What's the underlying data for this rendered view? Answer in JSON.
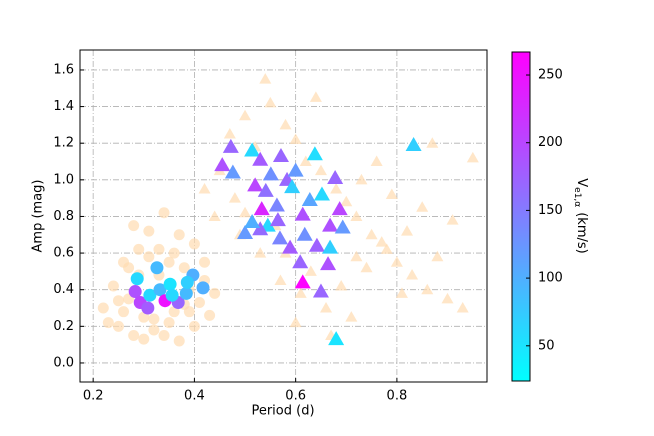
{
  "chart_data": {
    "type": "scatter",
    "xlabel": "Period (d)",
    "ylabel": "Amp (mag)",
    "xlim": [
      0.174,
      0.978
    ],
    "ylim": [
      -0.104,
      1.709
    ],
    "xticks": [
      0.2,
      0.4,
      0.6,
      0.8
    ],
    "yticks": [
      {
        "value": 0,
        "label": "0.0"
      },
      0.2,
      0.4,
      0.6,
      0.8,
      {
        "value": 1,
        "label": "1.0"
      },
      1.2,
      1.4,
      1.6
    ],
    "grid": true,
    "colorbar": {
      "label_main": "V",
      "label_sub": "e1,α",
      "label_unit": "(km/s)",
      "lim": [
        24,
        267
      ],
      "ticks": [
        50,
        100,
        150,
        200,
        250
      ],
      "colormap": [
        "#00ffff",
        "#ff00ff"
      ]
    },
    "series": [
      {
        "marker": "triangle",
        "color": "#ffdcb0",
        "x": [
          0.47,
          0.5,
          0.52,
          0.55,
          0.58,
          0.6,
          0.62,
          0.65,
          0.68,
          0.7,
          0.72,
          0.75,
          0.78,
          0.8,
          0.83,
          0.86,
          0.9,
          0.93,
          0.48,
          0.53,
          0.57,
          0.61,
          0.66,
          0.71,
          0.74,
          0.77,
          0.82,
          0.88,
          0.45,
          0.5,
          0.56,
          0.63,
          0.69,
          0.73,
          0.79,
          0.85,
          0.91,
          0.42,
          0.54,
          0.64,
          0.76,
          0.6,
          0.67,
          0.58,
          0.49,
          0.44,
          0.95,
          0.87,
          0.81,
          0.72
        ],
        "y": [
          1.25,
          1.35,
          1.18,
          1.42,
          1.3,
          1.22,
          1.1,
          1.05,
          0.95,
          0.88,
          0.8,
          0.7,
          0.62,
          0.55,
          0.48,
          0.4,
          0.35,
          0.3,
          0.9,
          0.6,
          0.45,
          0.38,
          0.3,
          0.25,
          0.52,
          0.66,
          0.72,
          0.58,
          1.05,
          0.82,
          0.75,
          0.5,
          0.42,
          1.0,
          0.92,
          0.85,
          0.78,
          0.95,
          1.55,
          1.45,
          1.1,
          0.22,
          0.15,
          0.6,
          0.7,
          0.8,
          1.12,
          1.2,
          0.38,
          0.58
        ]
      },
      {
        "marker": "circle",
        "color": "#ffdcb0",
        "x": [
          0.22,
          0.24,
          0.25,
          0.26,
          0.27,
          0.28,
          0.29,
          0.3,
          0.31,
          0.32,
          0.33,
          0.34,
          0.35,
          0.36,
          0.37,
          0.38,
          0.39,
          0.4,
          0.41,
          0.42,
          0.43,
          0.44,
          0.23,
          0.26,
          0.29,
          0.31,
          0.34,
          0.37,
          0.4,
          0.42,
          0.25,
          0.28,
          0.33,
          0.36,
          0.39,
          0.3,
          0.35,
          0.27,
          0.32,
          0.38
        ],
        "y": [
          0.3,
          0.42,
          0.2,
          0.55,
          0.35,
          0.15,
          0.62,
          0.25,
          0.72,
          0.18,
          0.48,
          0.82,
          0.22,
          0.6,
          0.12,
          0.52,
          0.28,
          0.65,
          0.33,
          0.45,
          0.26,
          0.38,
          0.22,
          0.28,
          0.48,
          0.58,
          0.15,
          0.7,
          0.2,
          0.55,
          0.34,
          0.75,
          0.62,
          0.28,
          0.4,
          0.13,
          0.55,
          0.52,
          0.24,
          0.32
        ]
      },
      {
        "marker": "triangle",
        "x": [
          0.833,
          0.68,
          0.614,
          0.65,
          0.472,
          0.455,
          0.476,
          0.514,
          0.53,
          0.571,
          0.638,
          0.52,
          0.541,
          0.551,
          0.583,
          0.6,
          0.533,
          0.563,
          0.593,
          0.614,
          0.628,
          0.652,
          0.678,
          0.687,
          0.668,
          0.693,
          0.5,
          0.545,
          0.569,
          0.589,
          0.609,
          0.642,
          0.618,
          0.668,
          0.664,
          0.565,
          0.53,
          0.514
        ],
        "y": [
          1.19,
          0.13,
          0.44,
          0.39,
          1.18,
          1.08,
          1.04,
          1.16,
          1.11,
          1.13,
          1.14,
          0.97,
          0.94,
          1.03,
          1.0,
          1.05,
          0.84,
          0.86,
          0.96,
          0.81,
          0.89,
          0.92,
          1.01,
          0.84,
          0.75,
          0.74,
          0.71,
          0.75,
          0.68,
          0.63,
          0.55,
          0.64,
          0.7,
          0.63,
          0.54,
          0.78,
          0.73,
          0.77
        ],
        "c": [
          70,
          50,
          265,
          170,
          170,
          190,
          120,
          60,
          180,
          170,
          55,
          200,
          160,
          130,
          170,
          120,
          230,
          140,
          70,
          190,
          110,
          60,
          170,
          200,
          190,
          120,
          120,
          60,
          140,
          180,
          170,
          175,
          130,
          70,
          190,
          170,
          165,
          100
        ]
      },
      {
        "marker": "circle",
        "x": [
          0.287,
          0.326,
          0.283,
          0.293,
          0.312,
          0.308,
          0.332,
          0.342,
          0.352,
          0.368,
          0.384,
          0.397,
          0.417,
          0.386,
          0.356
        ],
        "y": [
          0.46,
          0.52,
          0.39,
          0.33,
          0.37,
          0.3,
          0.4,
          0.34,
          0.43,
          0.33,
          0.38,
          0.48,
          0.41,
          0.44,
          0.37
        ],
        "c": [
          60,
          90,
          190,
          200,
          60,
          180,
          90,
          250,
          50,
          170,
          90,
          100,
          100,
          70,
          60
        ]
      }
    ]
  }
}
